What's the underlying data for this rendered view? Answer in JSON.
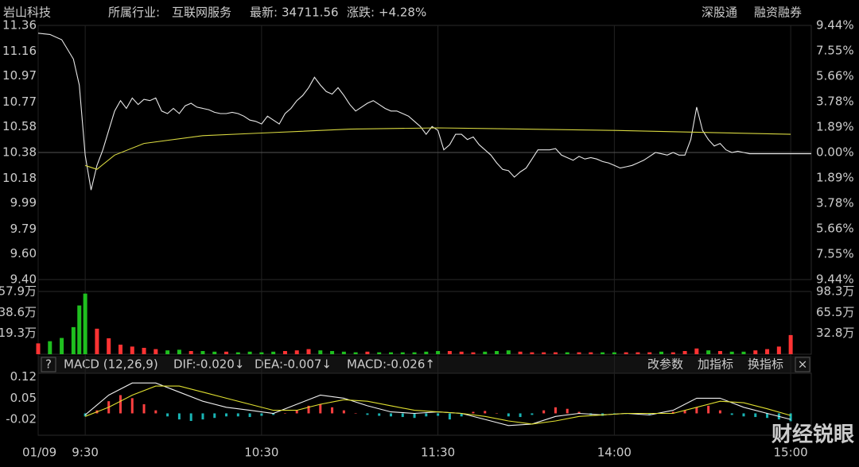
{
  "header": {
    "name": "岩山科技",
    "industry_label": "所属行业:",
    "industry": "互联网服务",
    "latest_label": "最新:",
    "latest": "34711.56",
    "change_label": "涨跌:",
    "change": "+4.28%",
    "tag1": "深股通",
    "tag2": "融资融券"
  },
  "macd_header": {
    "help": "?",
    "title": "MACD (12,26,9)",
    "dif": "DIF:-0.020↓",
    "dea": "DEA:-0.007↓",
    "macd": "MACD:-0.026↑"
  },
  "buttons": [
    "改参数",
    "加指标",
    "换指标"
  ],
  "watermark": "财经锐眼",
  "chart_data": [
    {
      "type": "line",
      "xlim": [
        -16,
        247
      ],
      "xticks": [
        {
          "value": -16,
          "label": "01/09"
        },
        {
          "value": 0,
          "label": "9:30"
        },
        {
          "value": 60,
          "label": "10:30"
        },
        {
          "value": 120,
          "label": "11:30"
        },
        {
          "value": 180,
          "label": "14:00"
        },
        {
          "value": 240,
          "label": "15:00"
        }
      ],
      "ylim": [
        9.4,
        11.36
      ],
      "yticks": [
        11.36,
        11.16,
        10.97,
        10.77,
        10.58,
        10.38,
        10.18,
        9.99,
        9.79,
        {
          "value": 9.6,
          "label": "9.60"
        },
        {
          "value": 9.4,
          "label": "9.40"
        }
      ],
      "y2lim": [
        -9.44,
        9.44
      ],
      "y2ticks": [
        {
          "value": 9.44,
          "label": "9.44%"
        },
        {
          "value": 7.55,
          "label": "7.55%"
        },
        {
          "value": 5.66,
          "label": "5.66%"
        },
        {
          "value": 3.78,
          "label": "3.78%"
        },
        {
          "value": 1.89,
          "label": "1.89%"
        },
        {
          "value": 0,
          "label": "0.00%"
        },
        {
          "value": -1.89,
          "label": "1.89%"
        },
        {
          "value": -3.78,
          "label": "3.78%"
        },
        {
          "value": -5.66,
          "label": "5.66%"
        },
        {
          "value": -7.55,
          "label": "7.55%"
        },
        {
          "value": -9.44,
          "label": "9.44%"
        }
      ],
      "up_color": "#ff4d4d",
      "down_color": "#33cc33",
      "flat_color": "#e0e0e0",
      "series": [
        {
          "color": "#e8e8e8",
          "x": [
            -16,
            -12,
            -8,
            -4,
            -2,
            0,
            2,
            4,
            6,
            8,
            10,
            12,
            14,
            16,
            18,
            20,
            22,
            24,
            26,
            28,
            30,
            32,
            34,
            36,
            38,
            40,
            42,
            44,
            46,
            48,
            50,
            52,
            54,
            56,
            58,
            60,
            62,
            64,
            66,
            68,
            70,
            72,
            74,
            76,
            78,
            80,
            82,
            84,
            86,
            88,
            90,
            92,
            94,
            96,
            98,
            100,
            102,
            104,
            106,
            108,
            110,
            112,
            114,
            116,
            118,
            120,
            122,
            124,
            126,
            128,
            130,
            132,
            134,
            136,
            138,
            140,
            142,
            144,
            146,
            148,
            150,
            152,
            154,
            156,
            158,
            160,
            162,
            164,
            166,
            168,
            170,
            172,
            174,
            176,
            178,
            180,
            182,
            184,
            186,
            188,
            190,
            192,
            194,
            196,
            198,
            200,
            202,
            204,
            206,
            208,
            210,
            212,
            214,
            216,
            218,
            220,
            222,
            224,
            226,
            228,
            230,
            232,
            234,
            236,
            238,
            240,
            247
          ],
          "values": [
            11.3,
            11.29,
            11.25,
            11.1,
            10.9,
            10.36,
            10.09,
            10.28,
            10.4,
            10.55,
            10.7,
            10.78,
            10.72,
            10.8,
            10.75,
            10.79,
            10.78,
            10.8,
            10.7,
            10.68,
            10.72,
            10.68,
            10.74,
            10.76,
            10.73,
            10.72,
            10.71,
            10.69,
            10.68,
            10.68,
            10.69,
            10.68,
            10.66,
            10.63,
            10.62,
            10.6,
            10.66,
            10.63,
            10.6,
            10.68,
            10.72,
            10.78,
            10.82,
            10.88,
            10.96,
            10.9,
            10.85,
            10.83,
            10.88,
            10.82,
            10.75,
            10.7,
            10.73,
            10.76,
            10.78,
            10.75,
            10.72,
            10.7,
            10.7,
            10.68,
            10.66,
            10.62,
            10.58,
            10.52,
            10.58,
            10.55,
            10.4,
            10.44,
            10.52,
            10.52,
            10.48,
            10.5,
            10.44,
            10.4,
            10.36,
            10.3,
            10.25,
            10.24,
            10.19,
            10.23,
            10.26,
            10.33,
            10.4,
            10.4,
            10.4,
            10.41,
            10.36,
            10.34,
            10.32,
            10.35,
            10.33,
            10.34,
            10.33,
            10.31,
            10.3,
            10.28,
            10.26,
            10.27,
            10.28,
            10.3,
            10.32,
            10.35,
            10.38,
            10.37,
            10.36,
            10.38,
            10.36,
            10.36,
            10.48,
            10.73,
            10.55,
            10.48,
            10.43,
            10.45,
            10.4,
            10.38,
            10.39,
            10.38,
            10.37,
            10.37,
            10.37,
            10.37,
            10.37,
            10.37,
            10.37,
            10.37,
            10.37
          ]
        },
        {
          "color": "#d8d840",
          "x": [
            0,
            4,
            10,
            20,
            40,
            60,
            90,
            120,
            180,
            240
          ],
          "values": [
            10.28,
            10.25,
            10.36,
            10.45,
            10.51,
            10.53,
            10.56,
            10.57,
            10.55,
            10.52
          ]
        }
      ]
    },
    {
      "type": "bar",
      "xlim": [
        -16,
        247
      ],
      "x": [
        -16,
        -12,
        -8,
        -4,
        -2,
        0,
        4,
        8,
        12,
        16,
        20,
        24,
        28,
        32,
        36,
        40,
        44,
        48,
        52,
        56,
        60,
        64,
        68,
        72,
        76,
        80,
        84,
        88,
        92,
        96,
        100,
        104,
        108,
        112,
        116,
        120,
        124,
        128,
        132,
        136,
        140,
        144,
        148,
        152,
        156,
        160,
        164,
        168,
        172,
        176,
        180,
        184,
        188,
        192,
        196,
        200,
        204,
        208,
        212,
        216,
        220,
        224,
        228,
        232,
        236,
        240
      ],
      "values": [
        10,
        12,
        15,
        25,
        45,
        95,
        40,
        25,
        15,
        12,
        10,
        8,
        6,
        7,
        5,
        5,
        4,
        4,
        3,
        4,
        3,
        4,
        5,
        6,
        8,
        6,
        5,
        4,
        3,
        4,
        3,
        3,
        3,
        3,
        4,
        5,
        5,
        4,
        3,
        4,
        5,
        6,
        4,
        3,
        3,
        3,
        3,
        3,
        3,
        3,
        3,
        3,
        3,
        3,
        4,
        3,
        5,
        9,
        6,
        5,
        4,
        4,
        6,
        8,
        12,
        30
      ],
      "ylim": [
        0,
        57.9
      ],
      "yticks": [
        {
          "value": 57.9,
          "label": "57.9万"
        },
        {
          "value": 38.6,
          "label": "38.6万"
        },
        {
          "value": 19.3,
          "label": "19.3万"
        }
      ],
      "y2lim": [
        0,
        98.3
      ],
      "y2ticks": [
        {
          "value": 98.3,
          "label": "98.3万"
        },
        {
          "value": 65.5,
          "label": "65.5万"
        },
        {
          "value": 32.8,
          "label": "32.8万"
        }
      ],
      "up_color": "#ff3333",
      "down_color": "#1fbf1f"
    },
    {
      "type": "macd",
      "xlim": [
        -16,
        247
      ],
      "ylim": [
        -0.072,
        0.132
      ],
      "yticks": [
        0.12,
        0.05,
        -0.02
      ],
      "pos_color": "#ff4040",
      "neg_color": "#19b4b4",
      "x": [
        0,
        4,
        8,
        12,
        16,
        20,
        24,
        28,
        32,
        36,
        40,
        44,
        48,
        52,
        56,
        60,
        64,
        68,
        72,
        76,
        80,
        84,
        88,
        92,
        96,
        100,
        104,
        108,
        112,
        116,
        120,
        124,
        128,
        132,
        136,
        140,
        144,
        148,
        152,
        156,
        160,
        164,
        168,
        172,
        176,
        180,
        184,
        188,
        192,
        196,
        200,
        204,
        208,
        212,
        216,
        220,
        224,
        228,
        232,
        236,
        240
      ],
      "values": [
        -0.01,
        0.01,
        0.04,
        0.06,
        0.05,
        0.03,
        0.01,
        -0.01,
        -0.02,
        -0.025,
        -0.02,
        -0.015,
        -0.01,
        -0.01,
        -0.012,
        -0.008,
        -0.005,
        0,
        0.01,
        0.025,
        0.03,
        0.02,
        0.01,
        0,
        -0.005,
        -0.008,
        -0.01,
        -0.012,
        -0.015,
        -0.01,
        -0.008,
        -0.02,
        -0.01,
        0.005,
        0.008,
        0,
        -0.01,
        -0.012,
        -0.005,
        0.01,
        0.02,
        0.015,
        0.005,
        -0.005,
        -0.008,
        -0.004,
        -0.002,
        0,
        -0.003,
        0,
        0.005,
        0.01,
        0.02,
        0.025,
        0.01,
        -0.005,
        -0.01,
        -0.012,
        -0.015,
        -0.02,
        -0.026
      ],
      "series": [
        {
          "color": "#f0f0f0",
          "x": [
            0,
            8,
            16,
            24,
            32,
            40,
            48,
            56,
            64,
            72,
            80,
            88,
            96,
            104,
            112,
            120,
            128,
            136,
            144,
            152,
            160,
            168,
            176,
            184,
            192,
            200,
            208,
            216,
            224,
            232,
            240
          ],
          "values": [
            -0.005,
            0.06,
            0.1,
            0.1,
            0.07,
            0.04,
            0.02,
            0.01,
            0,
            0.03,
            0.06,
            0.05,
            0.025,
            0.005,
            0,
            0.005,
            0,
            -0.02,
            -0.04,
            -0.035,
            -0.01,
            0,
            -0.005,
            0,
            -0.005,
            0.01,
            0.05,
            0.05,
            0.02,
            0,
            -0.02
          ]
        },
        {
          "color": "#e0e030",
          "x": [
            0,
            8,
            16,
            24,
            32,
            40,
            48,
            56,
            64,
            72,
            80,
            88,
            96,
            104,
            112,
            120,
            128,
            136,
            144,
            152,
            160,
            168,
            176,
            184,
            192,
            200,
            208,
            216,
            224,
            232,
            240
          ],
          "values": [
            -0.01,
            0.02,
            0.06,
            0.09,
            0.09,
            0.07,
            0.05,
            0.03,
            0.01,
            0.01,
            0.03,
            0.045,
            0.04,
            0.025,
            0.01,
            0.005,
            0,
            -0.01,
            -0.025,
            -0.035,
            -0.025,
            -0.01,
            -0.005,
            0,
            0,
            0,
            0.02,
            0.04,
            0.035,
            0.015,
            -0.007
          ]
        }
      ]
    }
  ]
}
